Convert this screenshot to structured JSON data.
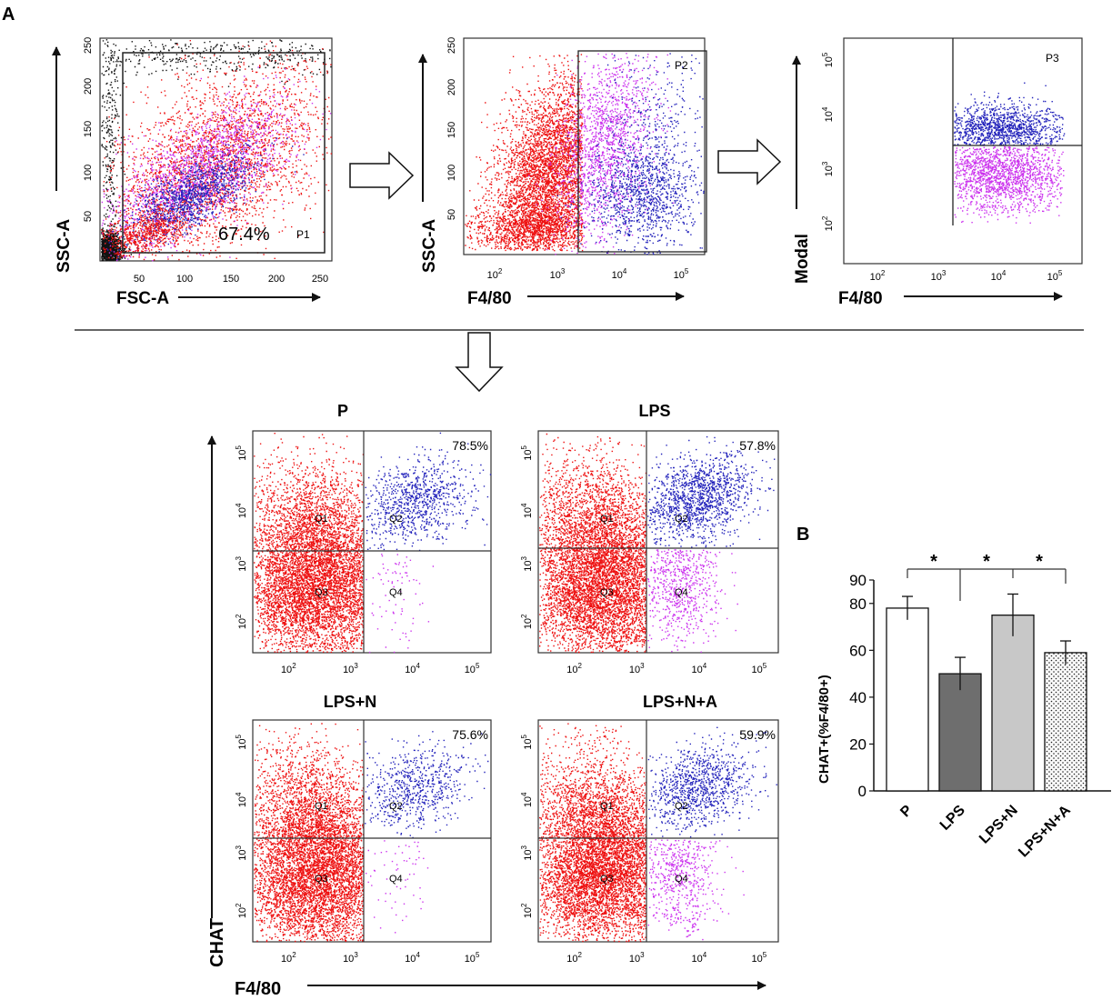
{
  "panel_labels": {
    "a": "A",
    "b": "B"
  },
  "colors": {
    "red": "#ee1111",
    "magenta": "#cc33ee",
    "blue": "#2222bb",
    "black": "#111111",
    "bar_p": "#ffffff",
    "bar_lps": "#6e6e6e",
    "bar_lpsn": "#c8c8c8",
    "bar_lpsna": "#f2f2f2"
  },
  "gating": {
    "plot1": {
      "xlabel": "FSC-A",
      "ylabel": "SSC-A",
      "xticks": [
        "50",
        "100",
        "150",
        "200",
        "250"
      ],
      "yticks": [
        "50",
        "100",
        "150",
        "200",
        "250"
      ],
      "gate_label": "P1",
      "percent": "67.4%"
    },
    "plot2": {
      "xlabel": "F4/80",
      "ylabel": "SSC-A",
      "xticks": [
        "10",
        "10",
        "10",
        "10"
      ],
      "xexp": [
        "2",
        "3",
        "4",
        "5"
      ],
      "yticks": [
        "50",
        "100",
        "150",
        "200",
        "250"
      ],
      "gate_label": "P2"
    },
    "plot3": {
      "xlabel": "F4/80",
      "ylabel": "Modal",
      "xticks": [
        "10",
        "10",
        "10",
        "10"
      ],
      "xexp": [
        "2",
        "3",
        "4",
        "5"
      ],
      "yticks": [
        "10",
        "10",
        "10",
        "10"
      ],
      "yexp": [
        "2",
        "3",
        "4",
        "5"
      ],
      "gate_label": "P3"
    }
  },
  "quadrants": {
    "shared_xlabel": "F4/80",
    "shared_ylabel": "CHAT",
    "tick_base": "10",
    "tick_exps": [
      "2",
      "3",
      "4",
      "5"
    ],
    "quadrant_names": [
      "Q1",
      "Q2",
      "Q3",
      "Q4"
    ],
    "plots": [
      {
        "title": "P",
        "percent": "78.5%"
      },
      {
        "title": "LPS",
        "percent": "57.8%"
      },
      {
        "title": "LPS+N",
        "percent": "75.6%"
      },
      {
        "title": "LPS+N+A",
        "percent": "59.9%"
      }
    ]
  },
  "chart_data": {
    "type": "bar",
    "title": "",
    "ylabel": "CHAT+(%F4/80+)",
    "xlabel": "",
    "categories": [
      "P",
      "LPS",
      "LPS+N",
      "LPS+N+A"
    ],
    "values": [
      78,
      50,
      75,
      59
    ],
    "errors": [
      5,
      7,
      9,
      5
    ],
    "ylim": [
      0,
      90
    ],
    "yticks": [
      0,
      20,
      40,
      60,
      80,
      90
    ],
    "significance": [
      "*",
      "*",
      "*"
    ],
    "bar_fills": [
      "white",
      "dark gray",
      "light gray",
      "dotted"
    ]
  }
}
